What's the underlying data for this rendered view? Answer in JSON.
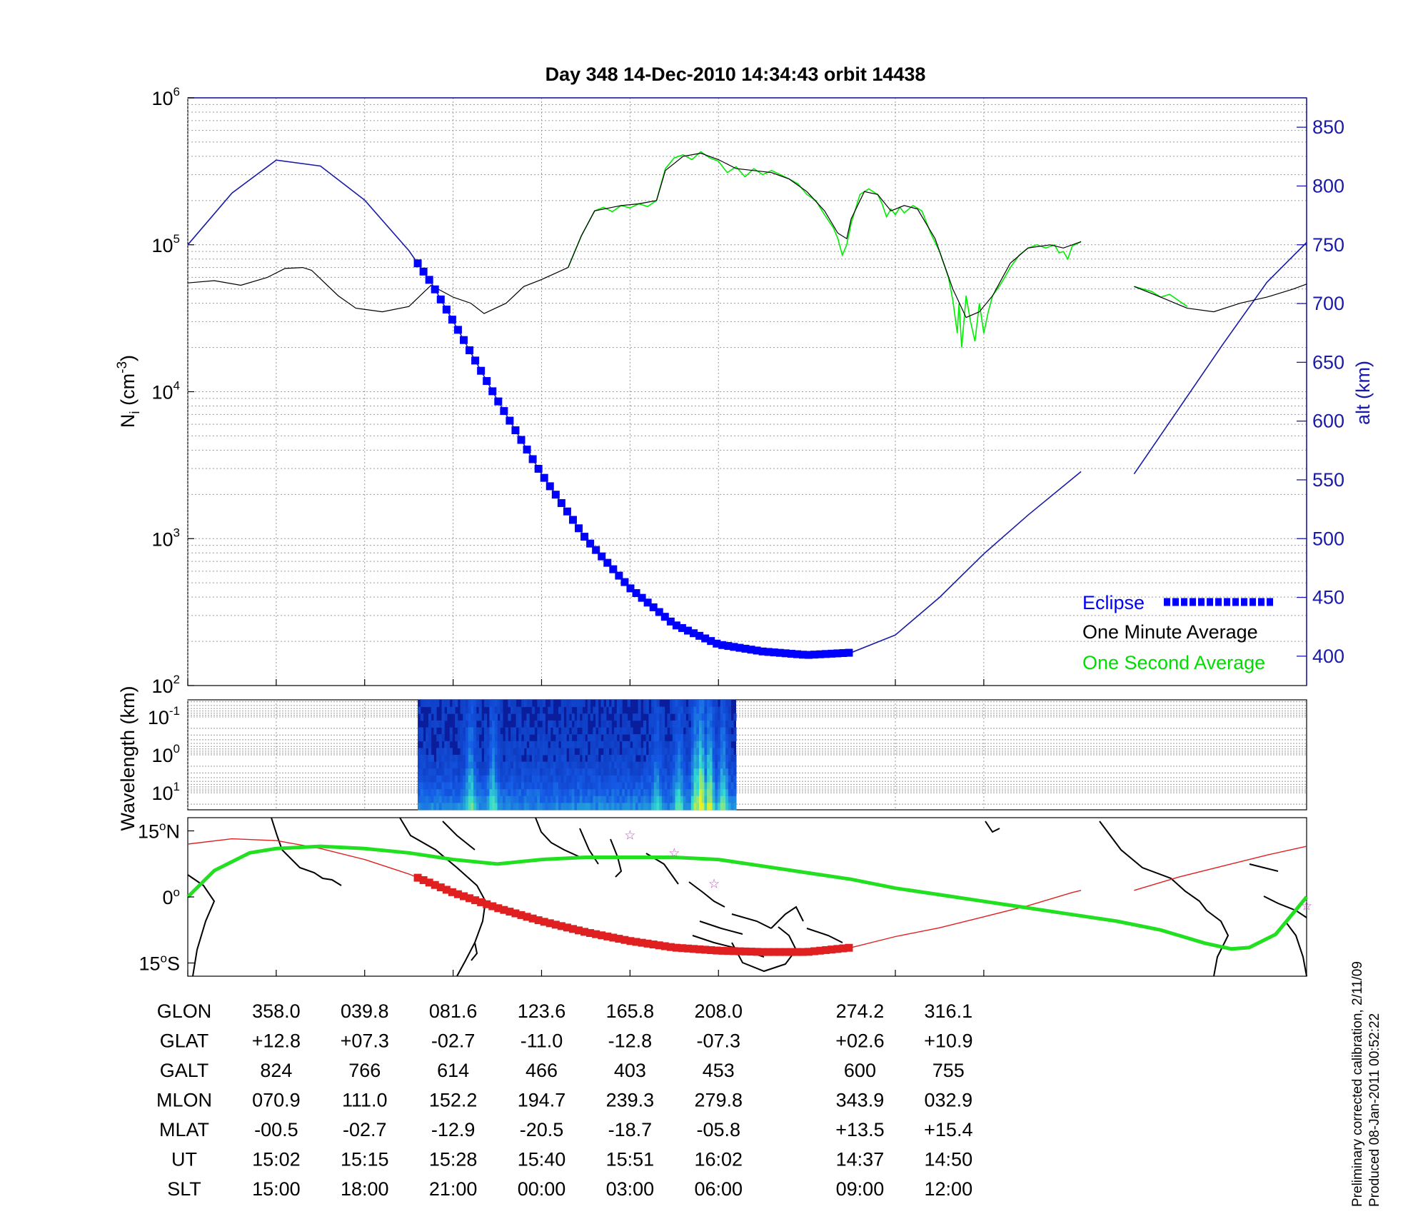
{
  "title": "Day 348  14-Dec-2010 14:34:43   orbit 14438",
  "footer_note": [
    "Preliminary corrected calibration, 2/11/09",
    "Produced 08-Jan-2011 00:52:22"
  ],
  "colors": {
    "eclipse": "#0000ff",
    "one_minute": "#000000",
    "one_second": "#00ee00",
    "altitude": "#1a1aa8",
    "track_red": "#e02020",
    "track_green": "#20e020",
    "stars": "#d040d0"
  },
  "chart_data": [
    {
      "type": "line",
      "name": "Ion density and altitude",
      "ylabel": "N_i (cm^-3)",
      "ylabel_base": "N",
      "ylabel_sub": "i",
      "ylabel_rest": " (cm",
      "ylabel_sup": "-3",
      "ylabel_end": ")",
      "y2label": "alt (km)",
      "yscale": "log",
      "ylim": [
        100,
        1000000
      ],
      "y2lim": [
        375,
        875
      ],
      "ytick_base": "10",
      "yticks_exp": [
        "2",
        "3",
        "4",
        "5",
        "6"
      ],
      "y2ticks": [
        "400",
        "450",
        "500",
        "550",
        "600",
        "650",
        "700",
        "750",
        "800",
        "850"
      ],
      "legend": [
        {
          "label": "Eclipse",
          "marker": "dashed-square"
        },
        {
          "label": "One Minute Average",
          "marker": "none"
        },
        {
          "label": "One Second Average",
          "marker": "none"
        }
      ],
      "density_one_minute": [
        [
          0,
          55000
        ],
        [
          0.3,
          57000
        ],
        [
          0.6,
          53000
        ],
        [
          0.9,
          60000
        ],
        [
          1.1,
          69000
        ],
        [
          1.3,
          70000
        ],
        [
          1.4,
          67000
        ],
        [
          1.7,
          45000
        ],
        [
          1.9,
          37000
        ],
        [
          2.2,
          35000
        ],
        [
          2.5,
          38000
        ],
        [
          2.75,
          53000
        ],
        [
          3.0,
          44000
        ],
        [
          3.2,
          40000
        ],
        [
          3.35,
          34000
        ],
        [
          3.6,
          40000
        ],
        [
          3.8,
          52000
        ],
        [
          4.0,
          58000
        ],
        [
          4.3,
          70000
        ],
        [
          4.45,
          115000
        ],
        [
          4.6,
          170000
        ],
        [
          4.9,
          185000
        ],
        [
          5.1,
          190000
        ],
        [
          5.3,
          200000
        ],
        [
          5.4,
          320000
        ],
        [
          5.6,
          400000
        ],
        [
          5.8,
          420000
        ],
        [
          6.0,
          380000
        ],
        [
          6.2,
          330000
        ],
        [
          6.4,
          320000
        ],
        [
          6.6,
          310000
        ],
        [
          6.8,
          280000
        ],
        [
          7.0,
          230000
        ],
        [
          7.2,
          170000
        ],
        [
          7.35,
          120000
        ],
        [
          7.45,
          110000
        ],
        [
          7.5,
          150000
        ],
        [
          7.65,
          230000
        ],
        [
          7.8,
          220000
        ],
        [
          7.95,
          170000
        ],
        [
          8.1,
          185000
        ],
        [
          8.25,
          175000
        ],
        [
          8.45,
          110000
        ],
        [
          8.65,
          50000
        ],
        [
          8.8,
          32000
        ],
        [
          8.95,
          35000
        ],
        [
          9.1,
          45000
        ],
        [
          9.3,
          75000
        ],
        [
          9.5,
          95000
        ],
        [
          9.75,
          100000
        ],
        [
          9.9,
          95000
        ],
        [
          10.1,
          105000
        ],
        null,
        [
          10.7,
          52000
        ],
        [
          11.0,
          44000
        ],
        [
          11.3,
          37000
        ],
        [
          11.6,
          35000
        ],
        [
          11.9,
          40000
        ],
        [
          12.2,
          44000
        ],
        [
          12.5,
          50000
        ],
        [
          12.65,
          54000
        ]
      ],
      "density_one_second": [
        [
          4.3,
          70000
        ],
        [
          4.45,
          115000
        ],
        [
          4.6,
          170000
        ],
        [
          4.7,
          180000
        ],
        [
          4.8,
          168000
        ],
        [
          4.9,
          185000
        ],
        [
          5.0,
          178000
        ],
        [
          5.1,
          190000
        ],
        [
          5.2,
          182000
        ],
        [
          5.3,
          200000
        ],
        [
          5.4,
          330000
        ],
        [
          5.5,
          390000
        ],
        [
          5.6,
          410000
        ],
        [
          5.7,
          380000
        ],
        [
          5.8,
          430000
        ],
        [
          5.9,
          390000
        ],
        [
          6.0,
          370000
        ],
        [
          6.1,
          310000
        ],
        [
          6.2,
          340000
        ],
        [
          6.3,
          290000
        ],
        [
          6.4,
          330000
        ],
        [
          6.5,
          300000
        ],
        [
          6.6,
          320000
        ],
        [
          6.7,
          300000
        ],
        [
          6.8,
          280000
        ],
        [
          6.9,
          260000
        ],
        [
          7.0,
          220000
        ],
        [
          7.1,
          200000
        ],
        [
          7.2,
          160000
        ],
        [
          7.3,
          130000
        ],
        [
          7.35,
          110000
        ],
        [
          7.4,
          85000
        ],
        [
          7.45,
          100000
        ],
        [
          7.5,
          140000
        ],
        [
          7.6,
          220000
        ],
        [
          7.7,
          240000
        ],
        [
          7.8,
          220000
        ],
        [
          7.85,
          190000
        ],
        [
          7.9,
          155000
        ],
        [
          7.95,
          175000
        ],
        [
          8.0,
          160000
        ],
        [
          8.05,
          180000
        ],
        [
          8.1,
          165000
        ],
        [
          8.2,
          185000
        ],
        [
          8.3,
          170000
        ],
        [
          8.4,
          120000
        ],
        [
          8.5,
          90000
        ],
        [
          8.6,
          60000
        ],
        [
          8.65,
          42000
        ],
        [
          8.7,
          25000
        ],
        [
          8.72,
          40000
        ],
        [
          8.75,
          20000
        ],
        [
          8.8,
          45000
        ],
        [
          8.85,
          30000
        ],
        [
          8.9,
          22000
        ],
        [
          8.95,
          40000
        ],
        [
          9.0,
          25000
        ],
        [
          9.05,
          35000
        ],
        [
          9.1,
          45000
        ],
        [
          9.2,
          55000
        ],
        [
          9.3,
          70000
        ],
        [
          9.4,
          85000
        ],
        [
          9.5,
          95000
        ],
        [
          9.6,
          100000
        ],
        [
          9.7,
          95000
        ],
        [
          9.8,
          100000
        ],
        [
          9.85,
          88000
        ],
        [
          9.9,
          90000
        ],
        [
          9.95,
          80000
        ],
        [
          10.0,
          98000
        ],
        [
          10.1,
          105000
        ],
        null,
        [
          10.7,
          52000
        ],
        [
          10.9,
          48000
        ],
        [
          11.0,
          44000
        ],
        [
          11.1,
          46000
        ],
        [
          11.3,
          38000
        ]
      ],
      "altitude": [
        [
          0,
          750
        ],
        [
          0.5,
          794
        ],
        [
          1.0,
          822
        ],
        [
          1.5,
          817
        ],
        [
          2.0,
          788
        ],
        [
          2.5,
          745
        ],
        [
          2.75,
          718
        ],
        [
          3.0,
          685
        ],
        [
          3.5,
          618
        ],
        [
          4.0,
          555
        ],
        [
          4.5,
          500
        ],
        [
          5.0,
          458
        ],
        [
          5.5,
          427
        ],
        [
          6.0,
          410
        ],
        [
          6.5,
          404
        ],
        [
          7.0,
          401
        ],
        [
          7.5,
          403
        ],
        [
          8.0,
          418
        ],
        [
          8.5,
          450
        ],
        [
          9.0,
          487
        ],
        [
          9.5,
          520
        ],
        [
          10.1,
          557
        ],
        null,
        [
          10.7,
          555
        ],
        [
          11.2,
          610
        ],
        [
          11.7,
          665
        ],
        [
          12.2,
          718
        ],
        [
          12.65,
          752
        ]
      ],
      "eclipse_range": [
        2.6,
        7.5
      ]
    },
    {
      "type": "heatmap",
      "name": "Wavelength spectrogram",
      "ylabel": "Wavelength (km)",
      "yscale": "log",
      "ytick_base": "10",
      "yticks_exp": [
        "-1",
        "0",
        "1"
      ],
      "x_range": [
        2.6,
        6.2
      ],
      "ylim_exp": [
        -1.45,
        1.45
      ],
      "strong_regions": [
        [
          3.2,
          0.3
        ],
        [
          3.45,
          0.25
        ],
        [
          5.3,
          0.2
        ],
        [
          5.55,
          0.25
        ],
        [
          5.75,
          0.4
        ],
        [
          5.8,
          0.55
        ],
        [
          5.9,
          0.45
        ],
        [
          6.05,
          0.3
        ]
      ]
    },
    {
      "type": "line",
      "name": "Orbit track map",
      "xlim": [
        -180,
        180
      ],
      "ylim": [
        -18,
        18
      ],
      "yticks": [
        {
          "value": 15,
          "label": "15",
          "suffix": "N"
        },
        {
          "value": 0,
          "label": "0",
          "suffix": ""
        },
        {
          "value": -15,
          "label": "15",
          "suffix": "S"
        }
      ],
      "track_geographic": [
        [
          0,
          12
        ],
        [
          0.5,
          13.2
        ],
        [
          1.0,
          12.8
        ],
        [
          1.5,
          11.0
        ],
        [
          2.0,
          8.5
        ],
        [
          2.5,
          5.2
        ],
        [
          3.0,
          1.0
        ],
        [
          3.5,
          -2.5
        ],
        [
          4.0,
          -5.5
        ],
        [
          4.5,
          -8.0
        ],
        [
          5.0,
          -10.0
        ],
        [
          5.5,
          -11.5
        ],
        [
          6.0,
          -12.2
        ],
        [
          6.5,
          -12.5
        ],
        [
          7.0,
          -12.5
        ],
        [
          7.5,
          -11.5
        ],
        [
          8.0,
          -9.0
        ],
        [
          8.5,
          -7.0
        ],
        [
          9.0,
          -4.5
        ],
        [
          9.5,
          -2.0
        ],
        [
          10.0,
          1.0
        ],
        [
          10.1,
          1.5
        ],
        null,
        [
          10.7,
          1.5
        ],
        [
          11.2,
          4.5
        ],
        [
          11.7,
          7.0
        ],
        [
          12.2,
          9.5
        ],
        [
          12.65,
          11.5
        ]
      ],
      "track_magnetic": [
        [
          0,
          0
        ],
        [
          0.3,
          6
        ],
        [
          0.7,
          10
        ],
        [
          1.0,
          11
        ],
        [
          1.5,
          11.5
        ],
        [
          2.0,
          11
        ],
        [
          2.5,
          10
        ],
        [
          3.0,
          8.5
        ],
        [
          3.5,
          7.5
        ],
        [
          4.0,
          8.5
        ],
        [
          4.5,
          9
        ],
        [
          5.0,
          9
        ],
        [
          5.5,
          9
        ],
        [
          6.0,
          8.5
        ],
        [
          6.5,
          7
        ],
        [
          7.0,
          5.5
        ],
        [
          7.5,
          4
        ],
        [
          8.0,
          2
        ],
        [
          8.5,
          0.5
        ],
        [
          9.0,
          -1
        ],
        [
          9.5,
          -2.5
        ],
        [
          10.0,
          -4.0
        ],
        [
          10.5,
          -5.5
        ],
        [
          11.0,
          -7.5
        ],
        [
          11.5,
          -10.5
        ],
        [
          11.8,
          -11.8
        ],
        [
          12.0,
          -11.5
        ],
        [
          12.3,
          -8.5
        ],
        [
          12.65,
          0
        ]
      ],
      "stars": [
        [
          5.0,
          14
        ],
        [
          5.5,
          10
        ],
        [
          5.95,
          3
        ],
        [
          12.65,
          -2
        ]
      ],
      "eclipse_range": [
        2.6,
        7.5
      ]
    }
  ],
  "x_ticks": [
    0,
    1,
    2,
    3,
    4,
    5,
    6,
    8,
    9
  ],
  "ephemeris": {
    "row_labels": [
      "GLON",
      "GLAT",
      "GALT",
      "MLON",
      "MLAT",
      "UT",
      "SLT"
    ],
    "columns": [
      {
        "x": 1,
        "values": [
          "358.0",
          "+12.8",
          "824",
          "070.9",
          "-00.5",
          "15:02",
          "15:00"
        ]
      },
      {
        "x": 2,
        "values": [
          "039.8",
          "+07.3",
          "766",
          "111.0",
          "-02.7",
          "15:15",
          "18:00"
        ]
      },
      {
        "x": 3,
        "values": [
          "081.6",
          "-02.7",
          "614",
          "152.2",
          "-12.9",
          "15:28",
          "21:00"
        ]
      },
      {
        "x": 4,
        "values": [
          "123.6",
          "-11.0",
          "466",
          "194.7",
          "-20.5",
          "15:40",
          "00:00"
        ]
      },
      {
        "x": 5,
        "values": [
          "165.8",
          "-12.8",
          "403",
          "239.3",
          "-18.7",
          "15:51",
          "03:00"
        ]
      },
      {
        "x": 6,
        "values": [
          "208.0",
          "-07.3",
          "453",
          "279.8",
          "-05.8",
          "16:02",
          "06:00"
        ]
      },
      {
        "x": 7.6,
        "values": [
          "274.2",
          "+02.6",
          "600",
          "343.9",
          "+13.5",
          "14:37",
          "09:00"
        ]
      },
      {
        "x": 8.6,
        "values": [
          "316.1",
          "+10.9",
          "755",
          "032.9",
          "+15.4",
          "14:50",
          "12:00"
        ]
      }
    ]
  }
}
